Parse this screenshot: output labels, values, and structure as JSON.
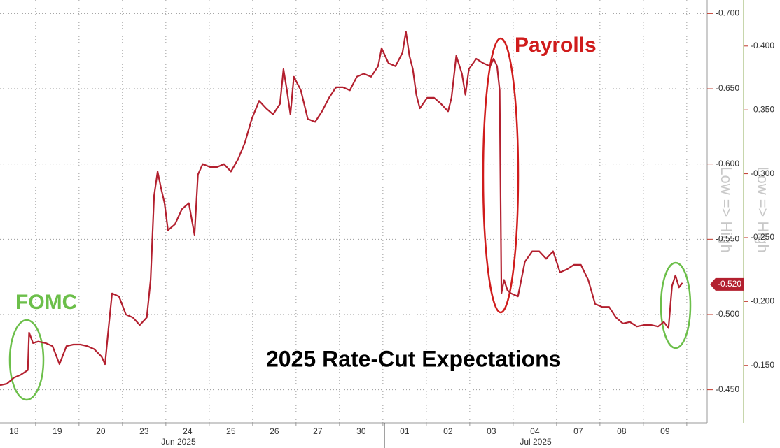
{
  "chart_data": {
    "type": "line",
    "title": "2025 Rate-Cut Expectations",
    "axis_titles": [
      "Low => High",
      "Low => High"
    ],
    "annotations": [
      {
        "text": "Payrolls",
        "color": "#d01c1c"
      },
      {
        "text": "FOMC",
        "color": "#6cbf4a"
      }
    ],
    "categories": [
      "18",
      "19",
      "20",
      "23",
      "24",
      "25",
      "26",
      "27",
      "30",
      "01",
      "02",
      "03",
      "04",
      "07",
      "08",
      "09"
    ],
    "months": [
      "Jun 2025",
      "Jul 2025"
    ],
    "xlim": [
      -0.32,
      15.97
    ],
    "ylim": [
      -0.428,
      -0.709
    ],
    "yticks": [
      {
        "value": -0.7,
        "label": "-0.700"
      },
      {
        "value": -0.65,
        "label": "-0.650"
      },
      {
        "value": -0.6,
        "label": "-0.600"
      },
      {
        "value": -0.55,
        "label": "-0.550"
      },
      {
        "value": -0.5,
        "label": "-0.500"
      },
      {
        "value": -0.45,
        "label": "-0.450"
      }
    ],
    "y2lim": [
      -0.105,
      -0.436
    ],
    "y2ticks": [
      {
        "value": -0.4,
        "label": "-0.400"
      },
      {
        "value": -0.35,
        "label": "-0.350"
      },
      {
        "value": -0.3,
        "label": "-0.300"
      },
      {
        "value": -0.25,
        "label": "-0.250"
      },
      {
        "value": -0.2,
        "label": "-0.200"
      },
      {
        "value": -0.15,
        "label": "-0.150"
      }
    ],
    "grid": true,
    "last_value": {
      "value": -0.52,
      "label": "-0.520"
    },
    "series": [
      {
        "color": "#b3202f",
        "x": [
          -0.32,
          -0.16,
          0,
          0.16,
          0.32,
          0.35,
          0.44,
          0.56,
          0.73,
          0.89,
          1.05,
          1.21,
          1.37,
          1.53,
          1.69,
          1.85,
          2.02,
          2.1,
          2.18,
          2.26,
          2.42,
          2.58,
          2.74,
          2.9,
          3.06,
          3.15,
          3.23,
          3.31,
          3.39,
          3.47,
          3.55,
          3.71,
          3.87,
          4.03,
          4.16,
          4.24,
          4.35,
          4.52,
          4.68,
          4.84,
          5.0,
          5.16,
          5.32,
          5.48,
          5.65,
          5.81,
          5.97,
          6.13,
          6.21,
          6.29,
          6.37,
          6.45,
          6.61,
          6.77,
          6.94,
          7.1,
          7.26,
          7.42,
          7.58,
          7.74,
          7.9,
          8.06,
          8.23,
          8.39,
          8.47,
          8.63,
          8.79,
          8.95,
          9.03,
          9.11,
          9.19,
          9.27,
          9.35,
          9.52,
          9.68,
          9.84,
          10.0,
          10.08,
          10.19,
          10.32,
          10.4,
          10.48,
          10.65,
          10.81,
          10.97,
          11.05,
          11.13,
          11.19,
          11.23,
          11.29,
          11.37,
          11.45,
          11.61,
          11.77,
          11.94,
          12.1,
          12.26,
          12.42,
          12.58,
          12.74,
          12.9,
          13.06,
          13.23,
          13.39,
          13.55,
          13.71,
          13.87,
          14.03,
          14.19,
          14.35,
          14.52,
          14.68,
          14.84,
          14.97,
          15.08,
          15.16,
          15.24,
          15.32,
          15.4
        ],
        "values": [
          -0.453,
          -0.454,
          -0.458,
          -0.46,
          -0.463,
          -0.488,
          -0.481,
          -0.482,
          -0.481,
          -0.479,
          -0.467,
          -0.479,
          -0.48,
          -0.48,
          -0.479,
          -0.477,
          -0.472,
          -0.467,
          -0.491,
          -0.514,
          -0.512,
          -0.5,
          -0.498,
          -0.493,
          -0.498,
          -0.523,
          -0.579,
          -0.595,
          -0.584,
          -0.574,
          -0.556,
          -0.56,
          -0.57,
          -0.574,
          -0.553,
          -0.593,
          -0.6,
          -0.598,
          -0.598,
          -0.6,
          -0.595,
          -0.603,
          -0.614,
          -0.63,
          -0.642,
          -0.637,
          -0.633,
          -0.64,
          -0.663,
          -0.649,
          -0.633,
          -0.658,
          -0.649,
          -0.63,
          -0.628,
          -0.635,
          -0.644,
          -0.651,
          -0.651,
          -0.649,
          -0.658,
          -0.66,
          -0.658,
          -0.665,
          -0.677,
          -0.667,
          -0.665,
          -0.674,
          -0.688,
          -0.672,
          -0.663,
          -0.646,
          -0.637,
          -0.644,
          -0.644,
          -0.64,
          -0.635,
          -0.644,
          -0.672,
          -0.66,
          -0.646,
          -0.663,
          -0.67,
          -0.667,
          -0.665,
          -0.67,
          -0.665,
          -0.649,
          -0.514,
          -0.523,
          -0.516,
          -0.514,
          -0.512,
          -0.535,
          -0.542,
          -0.542,
          -0.537,
          -0.542,
          -0.528,
          -0.53,
          -0.533,
          -0.533,
          -0.523,
          -0.507,
          -0.505,
          -0.505,
          -0.498,
          -0.494,
          -0.495,
          -0.492,
          -0.493,
          -0.493,
          -0.492,
          -0.495,
          -0.491,
          -0.519,
          -0.526,
          -0.518,
          -0.521
        ]
      }
    ]
  }
}
